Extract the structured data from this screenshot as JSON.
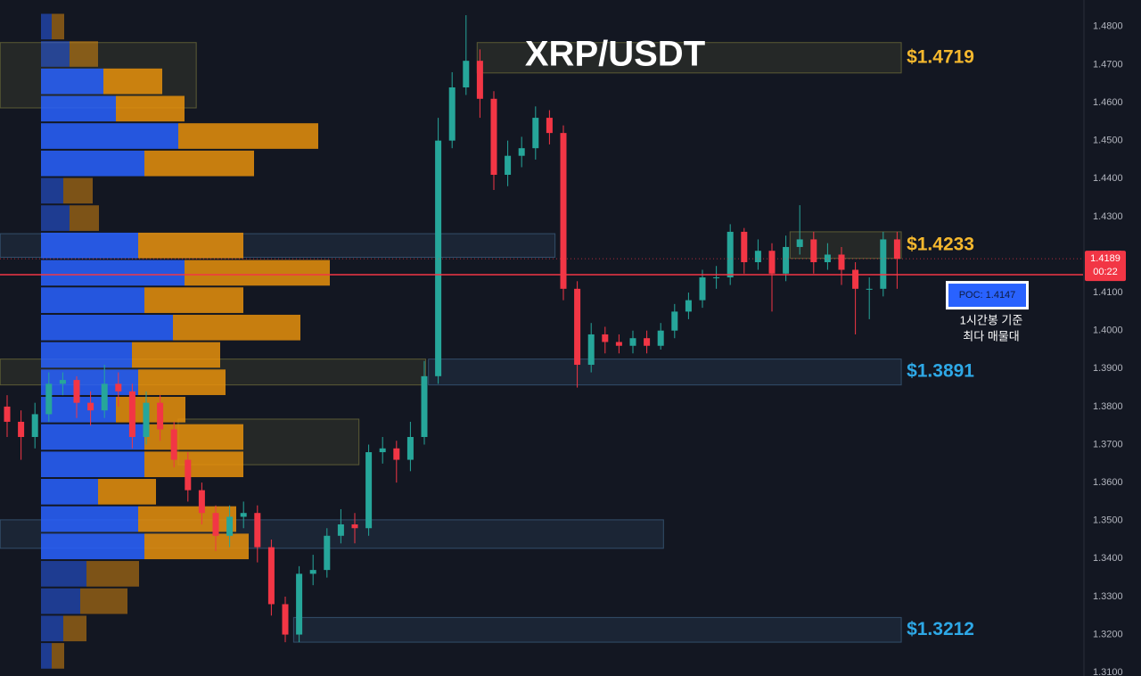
{
  "chart_data": {
    "type": "candlestick",
    "title": "XRP/USDT",
    "ylim": [
      1.3091,
      1.487
    ],
    "yticks": [
      {
        "value": 1.48,
        "label": "1.4800"
      },
      {
        "value": 1.47,
        "label": "1.4700"
      },
      {
        "value": 1.46,
        "label": "1.4600"
      },
      {
        "value": 1.45,
        "label": "1.4500"
      },
      {
        "value": 1.44,
        "label": "1.4400"
      },
      {
        "value": 1.43,
        "label": "1.4300"
      },
      {
        "value": 1.42,
        "label": "1.4200"
      },
      {
        "value": 1.41,
        "label": "1.4100"
      },
      {
        "value": 1.4,
        "label": "1.4000"
      },
      {
        "value": 1.39,
        "label": "1.3900"
      },
      {
        "value": 1.38,
        "label": "1.3800"
      },
      {
        "value": 1.37,
        "label": "1.3700"
      },
      {
        "value": 1.36,
        "label": "1.3600"
      },
      {
        "value": 1.35,
        "label": "1.3500"
      },
      {
        "value": 1.34,
        "label": "1.3400"
      },
      {
        "value": 1.33,
        "label": "1.3300"
      },
      {
        "value": 1.32,
        "label": "1.3200"
      },
      {
        "value": 1.31,
        "label": "1.3100"
      }
    ],
    "grid": false,
    "up_color": "#26a69a",
    "down_color": "#f23645",
    "open": [
      1.38,
      1.376,
      1.372,
      1.378,
      1.386,
      1.387,
      1.381,
      1.379,
      1.386,
      1.384,
      1.372,
      1.381,
      1.374,
      1.366,
      1.358,
      1.352,
      1.346,
      1.351,
      1.352,
      1.343,
      1.328,
      1.32,
      1.336,
      1.337,
      1.346,
      1.349,
      1.348,
      1.368,
      1.369,
      1.366,
      1.372,
      1.388,
      1.45,
      1.464,
      1.471,
      1.461,
      1.441,
      1.446,
      1.448,
      1.456,
      1.452,
      1.411,
      1.391,
      1.399,
      1.397,
      1.396,
      1.398,
      1.396,
      1.4,
      1.405,
      1.408,
      1.414,
      1.414,
      1.426,
      1.418,
      1.421,
      1.415,
      1.422,
      1.424,
      1.418,
      1.42,
      1.416,
      1.411,
      1.411,
      1.424
    ],
    "high": [
      1.383,
      1.379,
      1.381,
      1.389,
      1.389,
      1.388,
      1.384,
      1.391,
      1.389,
      1.386,
      1.384,
      1.383,
      1.376,
      1.368,
      1.36,
      1.354,
      1.354,
      1.355,
      1.354,
      1.345,
      1.33,
      1.338,
      1.341,
      1.348,
      1.353,
      1.352,
      1.37,
      1.372,
      1.371,
      1.376,
      1.392,
      1.456,
      1.468,
      1.483,
      1.474,
      1.463,
      1.45,
      1.451,
      1.459,
      1.458,
      1.454,
      1.413,
      1.402,
      1.401,
      1.399,
      1.4,
      1.4,
      1.402,
      1.407,
      1.41,
      1.416,
      1.417,
      1.428,
      1.427,
      1.424,
      1.423,
      1.425,
      1.433,
      1.426,
      1.423,
      1.422,
      1.418,
      1.414,
      1.426,
      1.426
    ],
    "low": [
      1.372,
      1.366,
      1.369,
      1.376,
      1.383,
      1.377,
      1.375,
      1.377,
      1.38,
      1.369,
      1.37,
      1.371,
      1.364,
      1.355,
      1.349,
      1.342,
      1.343,
      1.348,
      1.339,
      1.325,
      1.318,
      1.318,
      1.333,
      1.335,
      1.344,
      1.344,
      1.346,
      1.365,
      1.36,
      1.363,
      1.37,
      1.386,
      1.448,
      1.462,
      1.456,
      1.437,
      1.438,
      1.443,
      1.445,
      1.449,
      1.408,
      1.385,
      1.389,
      1.394,
      1.394,
      1.394,
      1.394,
      1.395,
      1.398,
      1.403,
      1.406,
      1.411,
      1.412,
      1.415,
      1.416,
      1.405,
      1.413,
      1.42,
      1.415,
      1.416,
      1.412,
      1.399,
      1.403,
      1.409,
      1.411
    ],
    "close": [
      1.376,
      1.372,
      1.378,
      1.386,
      1.387,
      1.381,
      1.379,
      1.386,
      1.384,
      1.372,
      1.381,
      1.374,
      1.366,
      1.358,
      1.352,
      1.346,
      1.351,
      1.352,
      1.343,
      1.328,
      1.32,
      1.336,
      1.337,
      1.346,
      1.349,
      1.348,
      1.368,
      1.369,
      1.366,
      1.372,
      1.388,
      1.45,
      1.464,
      1.471,
      1.461,
      1.441,
      1.446,
      1.448,
      1.456,
      1.452,
      1.411,
      1.391,
      1.399,
      1.397,
      1.396,
      1.398,
      1.396,
      1.4,
      1.405,
      1.408,
      1.414,
      1.414,
      1.426,
      1.418,
      1.421,
      1.415,
      1.422,
      1.424,
      1.418,
      1.42,
      1.416,
      1.411,
      1.411,
      1.424,
      1.4189
    ],
    "volume_profile": {
      "buy_color": "#2962ff",
      "sell_color": "#e8900c",
      "levels": [
        1.48,
        1.4728,
        1.4656,
        1.4584,
        1.4512,
        1.444,
        1.4368,
        1.4296,
        1.4224,
        1.4152,
        1.408,
        1.4008,
        1.3936,
        1.3864,
        1.3792,
        1.372,
        1.3648,
        1.3576,
        1.3504,
        1.3432,
        1.336,
        1.3288,
        1.3216,
        1.3144
      ],
      "buy": [
        12,
        32,
        70,
        84,
        154,
        116,
        25,
        32,
        109,
        161,
        116,
        148,
        102,
        109,
        84,
        116,
        116,
        64,
        109,
        116,
        51,
        44,
        25,
        12
      ],
      "sell": [
        14,
        32,
        66,
        77,
        157,
        123,
        33,
        33,
        118,
        163,
        111,
        143,
        99,
        98,
        78,
        111,
        111,
        65,
        110,
        117,
        59,
        53,
        26,
        14
      ]
    },
    "zones": [
      {
        "top": 1.4758,
        "bottom": 1.4586,
        "from": -0.5,
        "to": 13.6,
        "color": "#6b6a3a"
      },
      {
        "top": 1.4758,
        "bottom": 1.4678,
        "from": 33.8,
        "to": 64.3,
        "color": "#6b6a3a",
        "label": "$1.4719",
        "label_color": "#f5b82e"
      },
      {
        "top": 1.4255,
        "bottom": 1.4193,
        "from": -0.5,
        "to": 39.4,
        "color": "#3a5a7a"
      },
      {
        "top": 1.426,
        "bottom": 1.419,
        "from": 56.3,
        "to": 64.3,
        "color": "#6b6a3a",
        "label": "$1.4233",
        "label_color": "#f5b82e"
      },
      {
        "top": 1.3925,
        "bottom": 1.3857,
        "from": -0.5,
        "to": 30.1,
        "color": "#6b6a3a"
      },
      {
        "top": 1.3925,
        "bottom": 1.3857,
        "from": 30.3,
        "to": 64.3,
        "color": "#3a5a7a",
        "label": "$1.3891",
        "label_color": "#2ea8e6"
      },
      {
        "top": 1.3767,
        "bottom": 1.3647,
        "from": 12.3,
        "to": 25.3,
        "color": "#6b6a3a"
      },
      {
        "top": 1.3502,
        "bottom": 1.3427,
        "from": -0.5,
        "to": 47.2,
        "color": "#3a5a7a"
      },
      {
        "top": 1.3245,
        "bottom": 1.318,
        "from": 20.6,
        "to": 64.3,
        "color": "#3a5a7a",
        "label": "$1.3212",
        "label_color": "#2ea8e6"
      }
    ],
    "poc": {
      "value": 1.4147,
      "label": "POC: 1.4147",
      "color": "#f23645"
    },
    "note": [
      "1시간봉 기준",
      "최다 매물대"
    ],
    "last_price": {
      "value": 1.4189,
      "countdown": "00:22"
    }
  }
}
